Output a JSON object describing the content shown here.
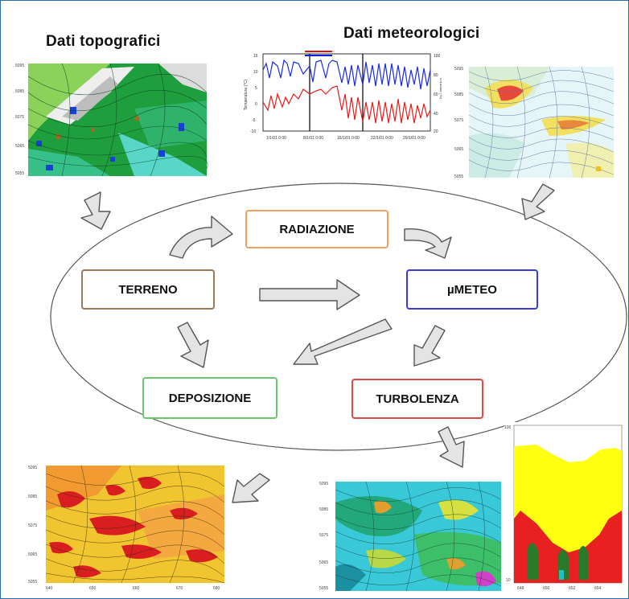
{
  "titles": {
    "topographic": "Dati topografici",
    "meteorological": "Dati meteorologici"
  },
  "nodes": {
    "radiazione": "RADIAZIONE",
    "terreno": "TERRENO",
    "mumeteo": "µMETEO",
    "deposizione": "DEPOSIZIONE",
    "turbolenza": "TURBOLENZA"
  },
  "colors": {
    "radiazione_border": "#f0a060",
    "terreno_border": "#a0785a",
    "mumeteo_border": "#3a3ad8",
    "deposizione_border": "#6cc66c",
    "turbolenza_border": "#e04848",
    "arrow_fill": "#e4e4e4",
    "arrow_stroke": "#555555",
    "frame": "#2b6cb0"
  },
  "figures": {
    "topo_map": "topographic contour map (green/cyan/blue, white relief)",
    "temp_series": "temperature time series chart (red and blue lines)",
    "wind_map": "wind field map (streamlines with yellow/red shading)",
    "deposition_map": "deposition contour map (orange/red)",
    "turbulence_map": "turbulence contour map (cyan/green)",
    "vertical_profile": "vertical profile (yellow/red/green)"
  }
}
